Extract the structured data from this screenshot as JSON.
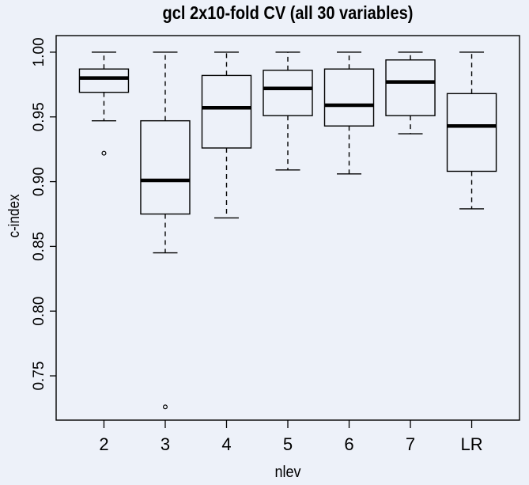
{
  "chart_data": {
    "type": "boxplot",
    "title": "gcl 2x10-fold CV (all 30 variables)",
    "xlabel": "nlev",
    "ylabel": "c-index",
    "categories": [
      "2",
      "3",
      "4",
      "5",
      "6",
      "7",
      "LR"
    ],
    "y_ticks": [
      0.75,
      0.8,
      0.85,
      0.9,
      0.95,
      1.0
    ],
    "y_tick_labels": [
      "0.75",
      "0.80",
      "0.85",
      "0.90",
      "0.95",
      "1.00"
    ],
    "ylim": [
      0.7158,
      1.0128
    ],
    "grid": false,
    "legend": null,
    "series": [
      {
        "category": "2",
        "whisker_low": 0.947,
        "q1": 0.969,
        "median": 0.98,
        "q3": 0.987,
        "whisker_high": 1.0,
        "outliers": [
          0.922
        ]
      },
      {
        "category": "3",
        "whisker_low": 0.845,
        "q1": 0.875,
        "median": 0.901,
        "q3": 0.947,
        "whisker_high": 1.0,
        "outliers": [
          0.726
        ]
      },
      {
        "category": "4",
        "whisker_low": 0.872,
        "q1": 0.926,
        "median": 0.957,
        "q3": 0.982,
        "whisker_high": 1.0,
        "outliers": []
      },
      {
        "category": "5",
        "whisker_low": 0.909,
        "q1": 0.951,
        "median": 0.972,
        "q3": 0.986,
        "whisker_high": 1.0,
        "outliers": []
      },
      {
        "category": "6",
        "whisker_low": 0.906,
        "q1": 0.943,
        "median": 0.959,
        "q3": 0.987,
        "whisker_high": 1.0,
        "outliers": []
      },
      {
        "category": "7",
        "whisker_low": 0.937,
        "q1": 0.951,
        "median": 0.977,
        "q3": 0.994,
        "whisker_high": 1.0,
        "outliers": []
      },
      {
        "category": "LR",
        "whisker_low": 0.879,
        "q1": 0.908,
        "median": 0.943,
        "q3": 0.968,
        "whisker_high": 1.0,
        "outliers": []
      }
    ],
    "colors": {
      "background": "#edf1f9",
      "line": "#000000",
      "text": "#000000"
    }
  }
}
